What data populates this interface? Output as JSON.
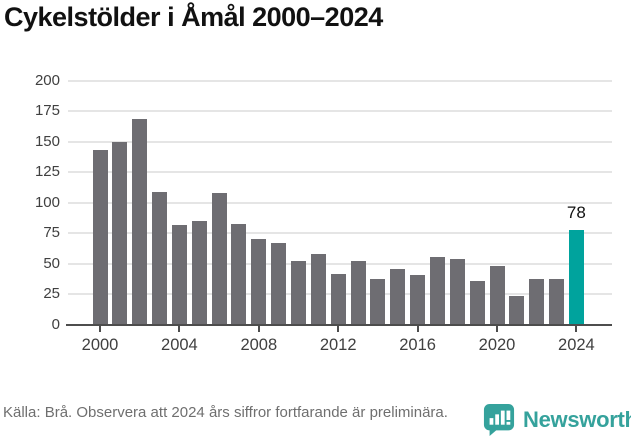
{
  "title": "Cykelstölder i Åmål 2000–2024",
  "chart_data": {
    "type": "bar",
    "title": "Cykelstölder i Åmål 2000–2024",
    "x": [
      2000,
      2001,
      2002,
      2003,
      2004,
      2005,
      2006,
      2007,
      2008,
      2009,
      2010,
      2011,
      2012,
      2013,
      2014,
      2015,
      2016,
      2017,
      2018,
      2019,
      2020,
      2021,
      2022,
      2023,
      2024
    ],
    "values": [
      143,
      150,
      169,
      109,
      82,
      85,
      108,
      83,
      70,
      67,
      52,
      58,
      42,
      52,
      38,
      46,
      41,
      56,
      54,
      36,
      48,
      24,
      38,
      38,
      78
    ],
    "ylim": [
      0,
      200
    ],
    "yticks": [
      0,
      25,
      50,
      75,
      100,
      125,
      150,
      175,
      200
    ],
    "xticks": [
      2000,
      2004,
      2008,
      2012,
      2016,
      2020,
      2024
    ],
    "grid": true,
    "legend": "none",
    "bar_color": "#6e6d72",
    "highlight_color": "#00a39d",
    "highlight_year": 2024,
    "annotation": {
      "year": 2024,
      "label": "78"
    }
  },
  "footer": {
    "source": "Källa: Brå. Observera att 2024 års siffror fortfarande är preliminära."
  },
  "branding": {
    "name": "Newsworthy",
    "icon": "bar-chart-speech-bubble-icon",
    "color": "#35a29c"
  },
  "colors": {
    "title_text": "#111111",
    "axis": "#4d4d4d",
    "gridline": "#e5e5e5",
    "tick_label": "#404040",
    "footer_text": "#6f6f6f"
  }
}
